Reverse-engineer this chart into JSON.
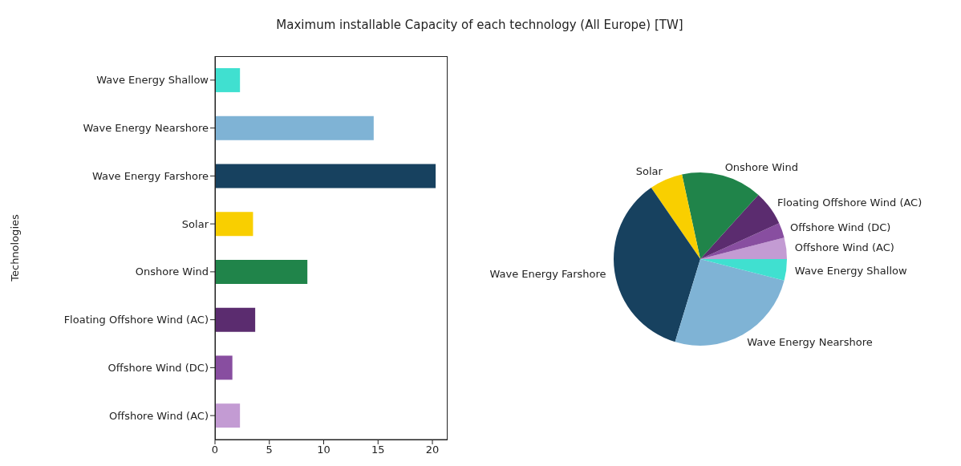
{
  "chart_data": [
    {
      "type": "bar",
      "title": "Maximum installable Capacity of each technology (All Europe) [TW]",
      "ylabel": "Technologies",
      "orientation": "horizontal",
      "categories": [
        "Wave Energy Shallow",
        "Wave Energy Nearshore",
        "Wave Energy Farshore",
        "Solar",
        "Onshore Wind",
        "Floating Offshore Wind (AC)",
        "Offshore Wind (DC)",
        "Offshore Wind (AC)"
      ],
      "values": [
        2.3,
        14.6,
        20.3,
        3.5,
        8.5,
        3.7,
        1.6,
        2.3
      ],
      "colors": [
        "#40e0d0",
        "#7fb3d5",
        "#17415f",
        "#f9cf00",
        "#20844a",
        "#5b2c6f",
        "#884ea0",
        "#c39bd3"
      ],
      "xlim": [
        0,
        21.4
      ],
      "xticks": [
        0,
        5,
        10,
        15,
        20
      ]
    },
    {
      "type": "pie",
      "categories": [
        "Offshore Wind (AC)",
        "Offshore Wind (DC)",
        "Floating Offshore Wind (AC)",
        "Onshore Wind",
        "Solar",
        "Wave Energy Farshore",
        "Wave Energy Nearshore",
        "Wave Energy Shallow"
      ],
      "values": [
        4.0,
        2.8,
        6.5,
        15.1,
        6.2,
        35.7,
        25.7,
        4.0
      ],
      "colors": [
        "#c39bd3",
        "#884ea0",
        "#5b2c6f",
        "#20844a",
        "#f9cf00",
        "#17415f",
        "#7fb3d5",
        "#40e0d0"
      ]
    }
  ]
}
